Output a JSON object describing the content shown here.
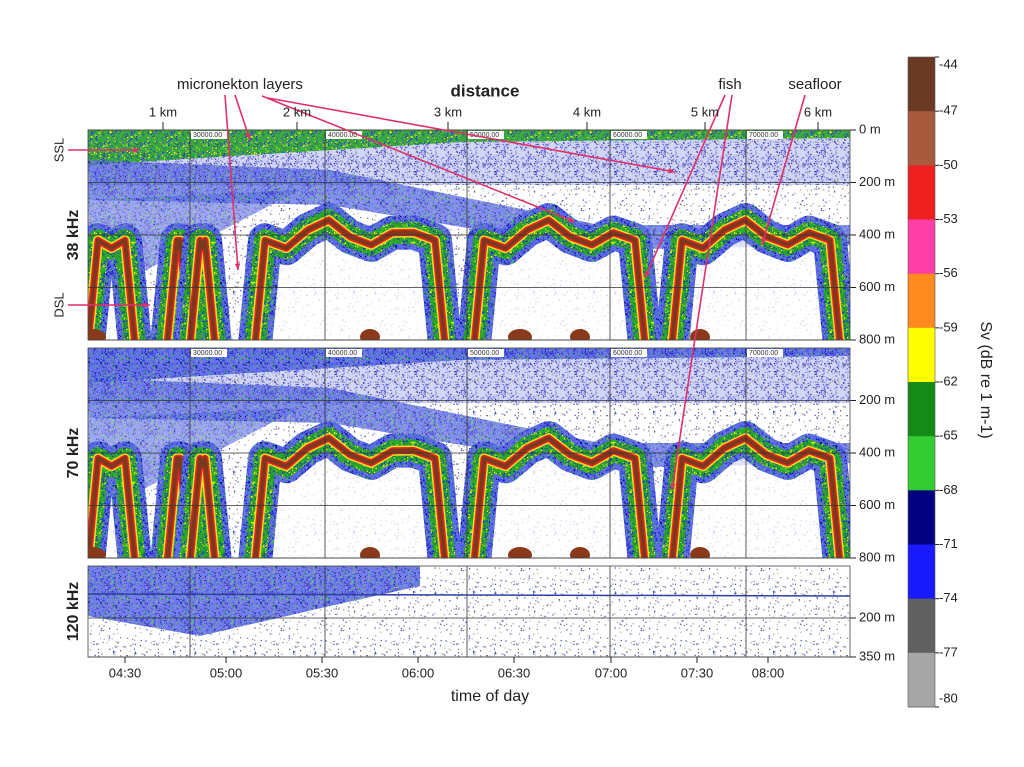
{
  "chart_data": {
    "type": "echogram",
    "title": "distance",
    "x_label": "time of day",
    "time_ticks": [
      "04:30",
      "05:00",
      "05:30",
      "06:00",
      "06:30",
      "07:00",
      "07:30",
      "08:00"
    ],
    "distance_ticks": [
      "1 km",
      "2 km",
      "3 km",
      "4 km",
      "5 km",
      "6 km"
    ],
    "marker_labels": [
      "30000.00",
      "40000.00",
      "50000.00",
      "60000.00",
      "70000.00"
    ],
    "panels": [
      {
        "name": "38 kHz",
        "ylim": [
          0,
          800
        ],
        "yticks": [
          {
            "value": 0,
            "label": "0 m"
          },
          {
            "value": 200,
            "label": "200 m"
          },
          {
            "value": 400,
            "label": "400 m"
          },
          {
            "value": 600,
            "label": "600 m"
          },
          {
            "value": 800,
            "label": "800 m"
          }
        ]
      },
      {
        "name": "70 kHz",
        "ylim": [
          0,
          800
        ],
        "yticks": [
          {
            "value": 200,
            "label": "200 m"
          },
          {
            "value": 400,
            "label": "400 m"
          },
          {
            "value": 600,
            "label": "600 m"
          },
          {
            "value": 800,
            "label": "800 m"
          }
        ]
      },
      {
        "name": "120 kHz",
        "ylim": [
          0,
          350
        ],
        "yticks": [
          {
            "value": 200,
            "label": "200 m"
          },
          {
            "value": 350,
            "label": "350 m"
          }
        ]
      }
    ],
    "colorbar": {
      "label": "Sv (dB re 1 m-1)",
      "ticks": [
        -44,
        -47,
        -50,
        -53,
        -56,
        -59,
        -62,
        -65,
        -68,
        -71,
        -74,
        -77,
        -80
      ],
      "colors": [
        "#6b3a24",
        "#a85a3c",
        "#ee2020",
        "#ff3fa6",
        "#ff8a1f",
        "#ffff00",
        "#168a16",
        "#33cc33",
        "#000080",
        "#1a1aff",
        "#606060",
        "#a6a6a6"
      ]
    },
    "annotations": {
      "micronekton": "micronekton layers",
      "fish": "fish",
      "seafloor": "seafloor",
      "ssl": "SSL",
      "dsl": "DSL"
    }
  }
}
